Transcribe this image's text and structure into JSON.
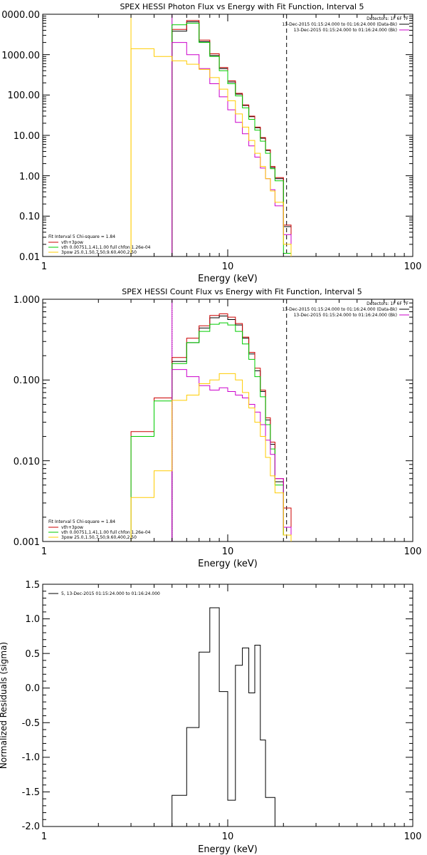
{
  "chart_data": [
    {
      "type": "line",
      "title": "SPEX HESSI Photon Flux vs Energy with Fit Function, Interval 5",
      "xlabel": "Energy (keV)",
      "ylabel": "",
      "x_scale": "log",
      "y_scale": "log",
      "xlim": [
        1,
        100
      ],
      "ylim": [
        0.01,
        10000
      ],
      "x_ticks": [
        "1",
        "10",
        "100"
      ],
      "y_ticks": [
        "0000.00",
        "1000.00",
        "100.00",
        "10.00",
        "1.00",
        "0.10",
        "0.01"
      ],
      "vlines": [
        {
          "x": 3.0,
          "color": "#ffcc00",
          "style": "solid"
        },
        {
          "x": 5.0,
          "color": "#00cc00",
          "style": "dotted"
        },
        {
          "x": 5.0,
          "color": "#cc00cc",
          "style": "solid"
        },
        {
          "x": 20.8,
          "color": "#000000",
          "style": "dashed"
        }
      ],
      "info": [
        "Detectors: 1F 6F 7F",
        "13-Dec-2015 01:15:24.000 to 01:16:24.000 (Data-Bk)",
        "13-Dec-2015 01:15:24.000 to 01:16:24.000 (Bk)"
      ],
      "info_line_colors": [
        "",
        "#000000",
        "#cc00cc"
      ],
      "legend": [
        "Fit Interval 5   Chi-square = 1.84",
        "vth+3pow",
        "vth 0.00751,1.41,1.00  full chfon 1.26e-04",
        "3pow 25.0,1.50,7.50,9.60,400,2.50"
      ],
      "legend_colors": [
        "",
        "#cc0000",
        "#00cc00",
        "#ffcc00"
      ],
      "edges": [
        3.0,
        4.0,
        5.0,
        6.0,
        7.0,
        8.0,
        9.0,
        10.0,
        11.0,
        12.0,
        13.0,
        14.0,
        15.0,
        16.0,
        17.0,
        18.0,
        20.0,
        22.0
      ],
      "series": [
        {
          "color": "#000000",
          "values": [
            null,
            null,
            3800,
            6500,
            2100,
            950,
            450,
            210,
            105,
            55,
            29,
            15.5,
            8.5,
            4.2,
            1.6,
            0.85,
            0.055
          ]
        },
        {
          "color": "#cc0000",
          "values": [
            null,
            null,
            4200,
            7000,
            2300,
            1050,
            480,
            225,
            110,
            57,
            30,
            16,
            8.8,
            4.4,
            1.7,
            0.9,
            0.06,
            0.022
          ]
        },
        {
          "color": "#00cc00",
          "values": [
            null,
            null,
            5500,
            6000,
            2000,
            900,
            400,
            190,
            95,
            48,
            25,
            13.5,
            7.2,
            3.6,
            1.5,
            0.75,
            0.012
          ]
        },
        {
          "color": "#cc00cc",
          "values": [
            null,
            null,
            2000,
            1000,
            450,
            190,
            90,
            43,
            21,
            11,
            5.5,
            2.9,
            1.55,
            0.85,
            0.45,
            0.18,
            0.035
          ]
        },
        {
          "color": "#ffcc00",
          "values": [
            1400,
            900,
            700,
            580,
            430,
            270,
            140,
            72,
            34,
            16,
            7.5,
            3.6,
            1.7,
            0.85,
            0.42,
            0.22,
            0.02
          ]
        }
      ]
    },
    {
      "type": "line",
      "title": "SPEX HESSI Count Flux vs Energy with Fit Function, Interval 5",
      "xlabel": "Energy (keV)",
      "ylabel": "",
      "x_scale": "log",
      "y_scale": "log",
      "xlim": [
        1,
        100
      ],
      "ylim": [
        0.001,
        1.0
      ],
      "x_ticks": [
        "1",
        "10",
        "100"
      ],
      "y_ticks": [
        "1.000",
        "0.100",
        "0.010",
        "0.001"
      ],
      "vlines": [
        {
          "x": 5.0,
          "color": "#000000",
          "style": "dotted"
        },
        {
          "x": 5.0,
          "color": "#cc00cc",
          "style": "solid"
        },
        {
          "x": 20.8,
          "color": "#000000",
          "style": "dashed"
        }
      ],
      "info": [
        "Detectors: 1F 6F 7F",
        "13-Dec-2015 01:15:24.000 to 01:16:24.000 (Data-Bk)",
        "13-Dec-2015 01:15:24.000 to 01:16:24.000 (Bk)"
      ],
      "info_line_colors": [
        "",
        "#000000",
        "#cc00cc"
      ],
      "legend": [
        "Fit Interval 5   Chi-square = 1.84",
        "vth+3pow",
        "vth 0.00751,1.41,1.00  full chfon 1.26e-04",
        "3pow 25.0,1.50,7.50,9.60,400,2.50"
      ],
      "legend_colors": [
        "",
        "#cc0000",
        "#00cc00",
        "#ffcc00"
      ],
      "edges": [
        3.0,
        4.0,
        5.0,
        6.0,
        7.0,
        8.0,
        9.0,
        10.0,
        11.0,
        12.0,
        13.0,
        14.0,
        15.0,
        16.0,
        17.0,
        18.0,
        20.0,
        22.0
      ],
      "series": [
        {
          "color": "#000000",
          "values": [
            null,
            null,
            0.17,
            0.29,
            0.44,
            0.59,
            0.62,
            0.56,
            0.48,
            0.33,
            0.21,
            0.13,
            0.072,
            0.032,
            0.016,
            0.0055,
            0.0012
          ]
        },
        {
          "color": "#cc0000",
          "values": [
            0.023,
            0.06,
            0.19,
            0.33,
            0.47,
            0.63,
            0.66,
            0.6,
            0.5,
            0.34,
            0.22,
            0.14,
            0.075,
            0.034,
            0.017,
            0.006,
            0.0026
          ]
        },
        {
          "color": "#00cc00",
          "values": [
            0.02,
            0.055,
            0.16,
            0.29,
            0.4,
            0.49,
            0.51,
            0.48,
            0.4,
            0.28,
            0.18,
            0.11,
            0.062,
            0.028,
            0.014,
            0.005,
            0.0012
          ]
        },
        {
          "color": "#cc00cc",
          "values": [
            null,
            null,
            0.135,
            0.11,
            0.085,
            0.075,
            0.08,
            0.072,
            0.065,
            0.06,
            0.05,
            0.04,
            0.028,
            0.018,
            0.012,
            0.006,
            0.0015
          ]
        },
        {
          "color": "#ffcc00",
          "values": [
            0.0035,
            0.0075,
            0.056,
            0.065,
            0.09,
            0.1,
            0.12,
            0.12,
            0.1,
            0.07,
            0.045,
            0.03,
            0.02,
            0.011,
            0.0065,
            0.004,
            0.0012
          ]
        }
      ]
    },
    {
      "type": "line",
      "title": "",
      "xlabel": "Energy (keV)",
      "ylabel": "Normalized Residuals (sigma)",
      "x_scale": "log",
      "y_scale": "linear",
      "xlim": [
        1,
        100
      ],
      "ylim": [
        -2.0,
        1.5
      ],
      "x_ticks": [
        "1",
        "10",
        "100"
      ],
      "y_ticks": [
        "1.5",
        "1.0",
        "0.5",
        "0.0",
        "-0.5",
        "-1.0",
        "-1.5",
        "-2.0"
      ],
      "legend": [
        "5, 13-Dec-2015 01:15:24.000 to 01:16:24.000"
      ],
      "legend_colors": [
        "#000000"
      ],
      "edges": [
        5.0,
        6.0,
        7.0,
        8.0,
        9.0,
        10.0,
        11.0,
        12.0,
        13.0,
        14.0,
        15.0,
        16.0,
        18.0,
        20.0
      ],
      "series": [
        {
          "color": "#000000",
          "values": [
            -1.55,
            -0.57,
            0.52,
            1.16,
            -0.05,
            -1.62,
            0.33,
            0.58,
            -0.07,
            0.62,
            -0.75,
            -1.58,
            -2.0
          ]
        }
      ]
    }
  ]
}
